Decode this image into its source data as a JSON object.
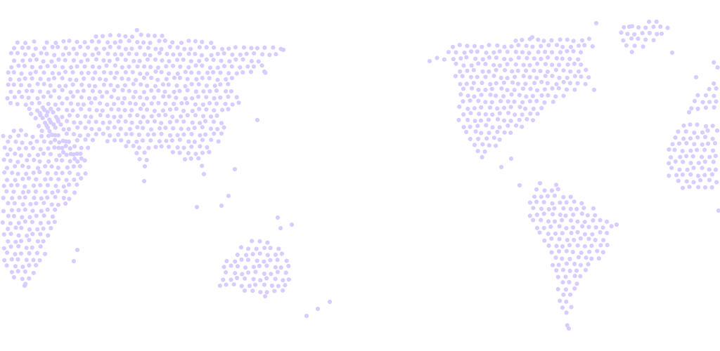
{
  "map": {
    "style": "dotted world map",
    "dot_color": "#d9ccff",
    "background_color": "#ffffff",
    "regions": [
      "asia",
      "oceania",
      "north-america",
      "south-america",
      "europe",
      "africa"
    ]
  }
}
